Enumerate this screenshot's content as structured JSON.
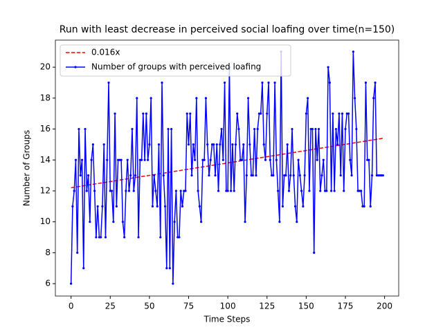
{
  "chart_data": {
    "type": "line",
    "title": "Run with least decrease in perceived social loafing over time(n=150)",
    "xlabel": "Time Steps",
    "ylabel": "Number of Groups",
    "xlim": [
      -10,
      209
    ],
    "ylim": [
      5.2,
      21.75
    ],
    "xticks": [
      0,
      25,
      50,
      75,
      100,
      125,
      150,
      175,
      200
    ],
    "yticks": [
      6,
      8,
      10,
      12,
      14,
      16,
      18,
      20
    ],
    "legend": "upper left",
    "series": [
      {
        "name": "0.016x",
        "color": "#ff0000",
        "style": "dashed",
        "x": [
          0,
          199
        ],
        "values": [
          12.2,
          15.4
        ]
      },
      {
        "name": "Number of groups with perceived loafing",
        "color": "#0000ff",
        "style": "solid-marker",
        "x": [
          0,
          1,
          2,
          3,
          4,
          5,
          6,
          7,
          8,
          9,
          10,
          11,
          12,
          13,
          14,
          15,
          16,
          17,
          18,
          19,
          20,
          21,
          22,
          23,
          24,
          25,
          26,
          27,
          28,
          29,
          30,
          31,
          32,
          33,
          34,
          35,
          36,
          37,
          38,
          39,
          40,
          41,
          42,
          43,
          44,
          45,
          46,
          47,
          48,
          49,
          50,
          51,
          52,
          53,
          54,
          55,
          56,
          57,
          58,
          59,
          60,
          61,
          62,
          63,
          64,
          65,
          66,
          67,
          68,
          69,
          70,
          71,
          72,
          73,
          74,
          75,
          76,
          77,
          78,
          79,
          80,
          81,
          82,
          83,
          84,
          85,
          86,
          87,
          88,
          89,
          90,
          91,
          92,
          93,
          94,
          95,
          96,
          97,
          98,
          99,
          100,
          101,
          102,
          103,
          104,
          105,
          106,
          107,
          108,
          109,
          110,
          111,
          112,
          113,
          114,
          115,
          116,
          117,
          118,
          119,
          120,
          121,
          122,
          123,
          124,
          125,
          126,
          127,
          128,
          129,
          130,
          131,
          132,
          133,
          134,
          135,
          136,
          137,
          138,
          139,
          140,
          141,
          142,
          143,
          144,
          145,
          146,
          147,
          148,
          149,
          150,
          151,
          152,
          153,
          154,
          155,
          156,
          157,
          158,
          159,
          160,
          161,
          162,
          163,
          164,
          165,
          166,
          167,
          168,
          169,
          170,
          171,
          172,
          173,
          174,
          175,
          176,
          177,
          178,
          179,
          180,
          181,
          182,
          183,
          184,
          185,
          186,
          187,
          188,
          189,
          190,
          191,
          192,
          193,
          194,
          195,
          196,
          197,
          198,
          199
        ],
        "values": [
          6,
          11,
          12,
          14,
          8,
          16,
          13,
          14,
          7,
          16,
          12,
          13,
          10,
          14,
          15,
          12,
          9,
          11,
          9,
          9,
          11,
          15,
          9,
          14,
          19,
          12,
          12,
          10,
          17,
          11,
          14,
          14,
          14,
          10,
          9,
          12,
          14,
          12,
          13,
          16,
          12,
          13,
          18,
          9,
          14,
          14,
          17,
          14,
          17,
          14,
          15,
          18,
          11,
          13,
          12,
          11,
          15,
          9,
          19,
          13,
          11,
          7,
          16,
          7,
          16,
          6,
          10,
          12,
          9,
          9,
          12,
          11,
          12,
          12,
          17,
          15,
          17,
          13,
          15,
          14,
          18,
          12,
          11,
          10,
          14,
          14,
          18,
          15,
          13,
          14,
          15,
          15,
          13,
          15,
          12,
          15,
          16,
          14,
          19,
          12,
          12,
          20,
          12,
          15,
          12,
          15,
          17,
          16,
          14,
          14,
          15,
          10,
          13,
          18,
          15,
          13,
          13,
          16,
          13,
          16,
          17,
          17,
          19,
          15,
          14,
          17,
          19,
          14,
          13,
          13,
          19,
          14,
          12,
          10,
          21,
          11,
          13,
          13,
          15,
          12,
          13,
          16,
          13,
          11,
          10,
          14,
          13,
          12,
          11,
          13,
          17,
          18,
          12,
          16,
          16,
          8,
          16,
          14,
          16,
          12,
          13,
          14,
          12,
          12,
          20,
          19,
          12,
          17,
          12,
          16,
          15,
          17,
          13,
          17,
          12,
          16,
          17,
          17,
          14,
          13,
          21,
          18,
          16,
          12,
          12,
          12,
          11,
          11,
          19,
          14,
          14,
          11,
          13,
          18,
          19,
          13,
          13,
          13,
          13,
          13
        ]
      }
    ]
  }
}
